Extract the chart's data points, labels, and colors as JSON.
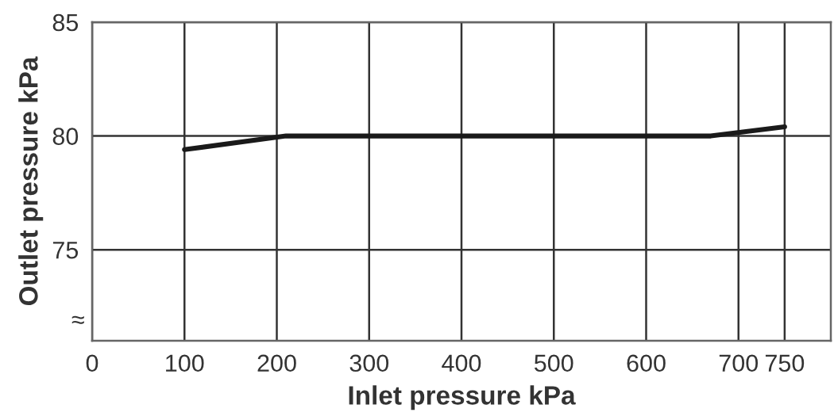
{
  "chart_data": {
    "type": "line",
    "xlabel": "Inlet pressure kPa",
    "ylabel": "Outlet pressure kPa",
    "x": [
      100,
      210,
      670,
      750
    ],
    "series": [
      {
        "color": "#1a1a1a",
        "values": [
          79.4,
          80,
          80,
          80.4
        ]
      }
    ],
    "xlim": [
      0,
      800
    ],
    "xticks": [
      0,
      100,
      200,
      300,
      400,
      500,
      600,
      700,
      750
    ],
    "ylim": [
      71,
      85
    ],
    "yticks": [
      75,
      80,
      85
    ],
    "grid": true,
    "marker": "none",
    "line_style": "solid",
    "annotations": [
      "≈"
    ]
  }
}
